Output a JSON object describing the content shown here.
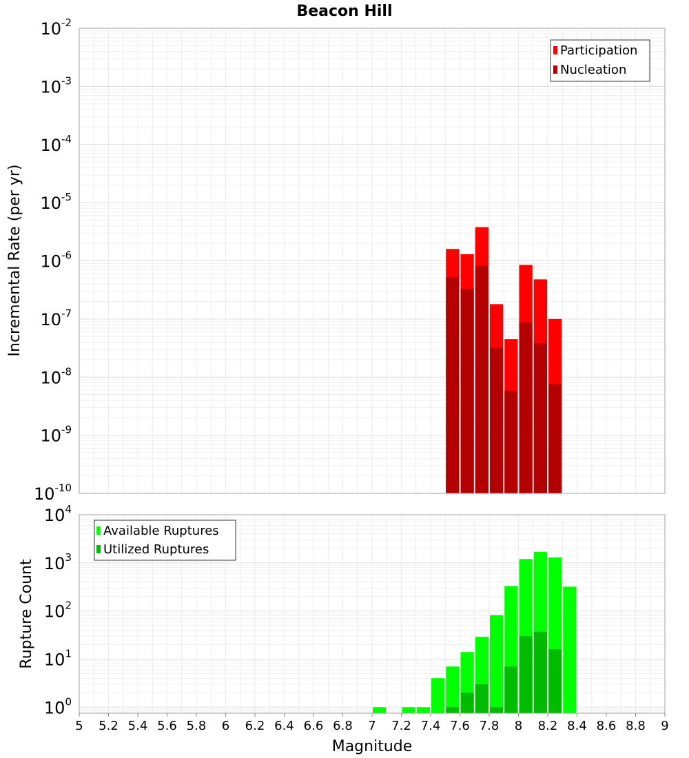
{
  "chart_data": [
    {
      "type": "bar",
      "title": "Beacon Hill",
      "xlabel": "Magnitude",
      "ylabel": "Incremental Rate (per yr)",
      "yscale": "log",
      "ylim": [
        1e-10,
        0.01
      ],
      "xlim": [
        5,
        9
      ],
      "bin_width": 0.1,
      "grid": true,
      "legend_position": "top-right",
      "y_tick_labels": [
        {
          "base": "10",
          "exp": "-10"
        },
        {
          "base": "10",
          "exp": "-9"
        },
        {
          "base": "10",
          "exp": "-8"
        },
        {
          "base": "10",
          "exp": "-7"
        },
        {
          "base": "10",
          "exp": "-6"
        },
        {
          "base": "10",
          "exp": "-5"
        },
        {
          "base": "10",
          "exp": "-4"
        },
        {
          "base": "10",
          "exp": "-3"
        },
        {
          "base": "10",
          "exp": "-2"
        }
      ],
      "x": [
        7.55,
        7.65,
        7.75,
        7.85,
        7.95,
        8.05,
        8.15,
        8.25
      ],
      "series": [
        {
          "name": "Participation",
          "color": "#ff0000",
          "values": [
            1.6e-06,
            1.3e-06,
            3.8e-06,
            1.8e-07,
            4.5e-08,
            8.5e-07,
            4.8e-07,
            1e-07
          ]
        },
        {
          "name": "Nucleation",
          "color": "#b30000",
          "values": [
            5.2e-07,
            3.3e-07,
            8.2e-07,
            3.2e-08,
            5.8e-09,
            8.8e-08,
            3.8e-08,
            7.5e-09
          ]
        }
      ]
    },
    {
      "type": "bar",
      "xlabel": "Magnitude",
      "ylabel": "Rupture Count",
      "yscale": "log",
      "ylim": [
        0.75,
        10000
      ],
      "xlim": [
        5,
        9
      ],
      "bin_width": 0.1,
      "grid": true,
      "legend_position": "top-left",
      "y_tick_labels": [
        {
          "base": "10",
          "exp": "0"
        },
        {
          "base": "10",
          "exp": "1"
        },
        {
          "base": "10",
          "exp": "2"
        },
        {
          "base": "10",
          "exp": "3"
        },
        {
          "base": "10",
          "exp": "4"
        }
      ],
      "x_tick_labels": [
        "5",
        "5.2",
        "5.4",
        "5.6",
        "5.8",
        "6",
        "6.2",
        "6.4",
        "6.6",
        "6.8",
        "7",
        "7.2",
        "7.4",
        "7.6",
        "7.8",
        "8",
        "8.2",
        "8.4",
        "8.6",
        "8.8",
        "9"
      ],
      "x": [
        7.05,
        7.25,
        7.35,
        7.45,
        7.55,
        7.65,
        7.75,
        7.85,
        7.95,
        8.05,
        8.15,
        8.25,
        8.35
      ],
      "series": [
        {
          "name": "Available Ruptures",
          "color": "#00ff00",
          "values": [
            1,
            1,
            1,
            4,
            7,
            14,
            29,
            82,
            330,
            1200,
            1700,
            1300,
            320
          ]
        },
        {
          "name": "Utilized Ruptures",
          "color": "#00bb00",
          "values": [
            0,
            0,
            0,
            0,
            1,
            2,
            3,
            1,
            7,
            30,
            37,
            16,
            0
          ]
        }
      ]
    }
  ]
}
